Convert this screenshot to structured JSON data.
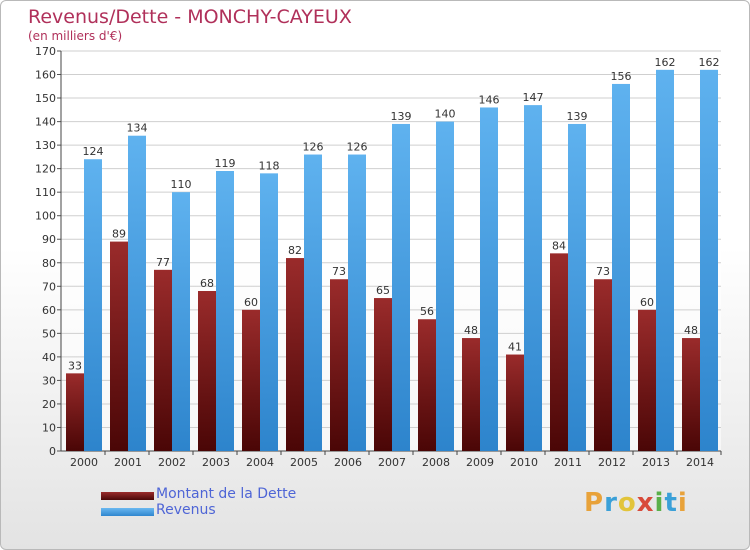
{
  "chart_data": {
    "type": "bar",
    "title": "Revenus/Dette - MONCHY-CAYEUX",
    "subtitle": "(en milliers d'€)",
    "categories": [
      "2000",
      "2001",
      "2002",
      "2003",
      "2004",
      "2005",
      "2006",
      "2007",
      "2008",
      "2009",
      "2010",
      "2011",
      "2012",
      "2013",
      "2014"
    ],
    "series": [
      {
        "name": "Montant de la Dette",
        "color": "#7a1c1c",
        "values": [
          33,
          89,
          77,
          68,
          60,
          82,
          73,
          65,
          56,
          48,
          41,
          84,
          73,
          60,
          48
        ]
      },
      {
        "name": "Revenus",
        "color": "#4aa3e8",
        "values": [
          124,
          134,
          110,
          119,
          118,
          126,
          126,
          139,
          140,
          146,
          147,
          139,
          156,
          162,
          162
        ]
      }
    ],
    "ylim": [
      0,
      170
    ],
    "yticks": [
      0,
      10,
      20,
      30,
      40,
      50,
      60,
      70,
      80,
      90,
      100,
      110,
      120,
      130,
      140,
      150,
      160,
      170
    ],
    "grid": true,
    "legend_position": "bottom-left"
  },
  "logo": {
    "letters": [
      "P",
      "r",
      "o",
      "x",
      "i",
      "t",
      "i"
    ],
    "colors": [
      "#e8a23a",
      "#3aa0d8",
      "#e2c43a",
      "#d84a3a",
      "#5ab04a",
      "#3aa0d8",
      "#e8a23a"
    ]
  }
}
